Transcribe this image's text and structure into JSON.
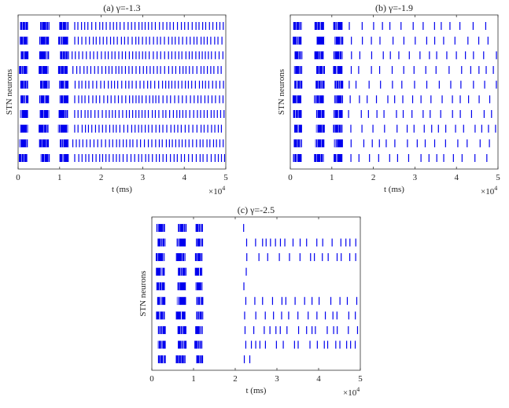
{
  "figure": {
    "accent": "#0000ee",
    "y_axis_label": "STN neurons",
    "x_axis_label": "t (ms)",
    "x_multiplier": "×10",
    "x_multiplier_exp": "4"
  },
  "chart_data": [
    {
      "type": "raster",
      "title": "(a) γ=-1.3",
      "xlabel": "t (ms)",
      "ylabel": "STN neurons",
      "xlim": [
        0,
        50000
      ],
      "xticks": [
        "0",
        "1",
        "2",
        "3",
        "4",
        "5"
      ],
      "rows": 10,
      "burst_windows": [
        [
          400,
          2400
        ],
        [
          5200,
          7500
        ],
        [
          9800,
          12100
        ]
      ],
      "tonic_start": 13000,
      "tonic_interval_range": [
        700,
        1000
      ],
      "series": [
        {
          "name": "",
          "color": "#0000ee"
        }
      ]
    },
    {
      "type": "raster",
      "title": "(b) γ=-1.9",
      "xlabel": "t (ms)",
      "ylabel": "STN neurons",
      "xlim": [
        0,
        50000
      ],
      "xticks": [
        "0",
        "1",
        "2",
        "3",
        "4",
        "5"
      ],
      "rows": 10,
      "burst_windows": [
        [
          800,
          2800
        ],
        [
          6000,
          8200
        ],
        [
          10400,
          12600
        ]
      ],
      "tonic_start": 14000,
      "tonic_interval_range": [
        1600,
        3200
      ],
      "series": [
        {
          "name": "",
          "color": "#0000ee"
        }
      ]
    },
    {
      "type": "raster",
      "title": "(c) γ=-2.5",
      "xlabel": "t (ms)",
      "ylabel": "STN neurons",
      "xlim": [
        0,
        50000
      ],
      "xticks": [
        "0",
        "1",
        "2",
        "3",
        "4",
        "5"
      ],
      "rows": 10,
      "burst_windows": [
        [
          1200,
          3200
        ],
        [
          6000,
          8200
        ],
        [
          10400,
          12200
        ]
      ],
      "tonic_start": 22000,
      "tonic_interval_range": [
        800,
        3000
      ],
      "series": [
        {
          "name": "",
          "color": "#0000ee"
        }
      ]
    }
  ]
}
